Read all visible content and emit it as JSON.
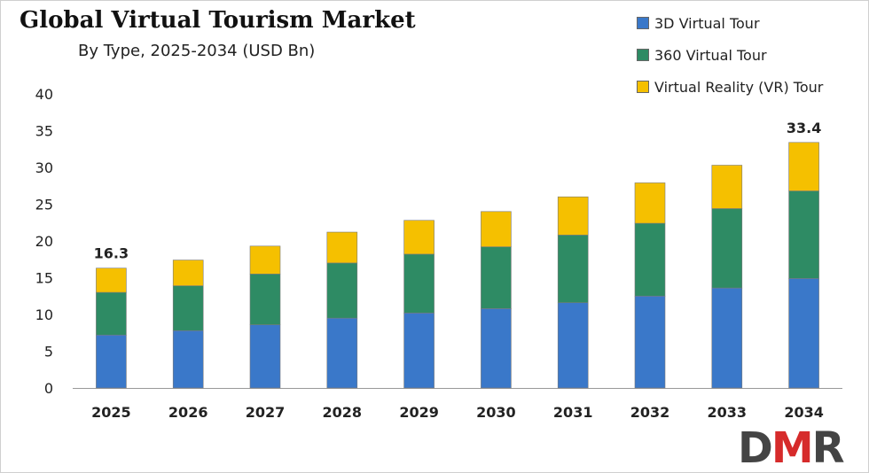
{
  "chart_data": {
    "type": "bar",
    "stacked": true,
    "title": "Global Virtual Tourism Market",
    "subtitle": "By Type, 2025-2034 (USD Bn)",
    "categories": [
      "2025",
      "2026",
      "2027",
      "2028",
      "2029",
      "2030",
      "2031",
      "2032",
      "2033",
      "2034"
    ],
    "series": [
      {
        "name": "3D Virtual Tour",
        "color": "#3a78c9",
        "values": [
          7.2,
          7.8,
          8.6,
          9.5,
          10.2,
          10.8,
          11.6,
          12.5,
          13.6,
          14.9
        ]
      },
      {
        "name": "360 Virtual Tour",
        "color": "#2e8b64",
        "values": [
          5.8,
          6.1,
          6.9,
          7.5,
          8.0,
          8.4,
          9.2,
          9.9,
          10.8,
          11.9
        ]
      },
      {
        "name": "Virtual Reality (VR) Tour",
        "color": "#f5c000",
        "values": [
          3.3,
          3.5,
          3.8,
          4.2,
          4.6,
          4.8,
          5.2,
          5.5,
          5.9,
          6.6
        ]
      }
    ],
    "totals_labeled": {
      "2025": "16.3",
      "2034": "33.4"
    },
    "yticks": [
      "0",
      "5",
      "10",
      "15",
      "20",
      "25",
      "30",
      "35",
      "40"
    ],
    "ylim": [
      0,
      40
    ],
    "grid": false,
    "legend_position": "top-right"
  },
  "logo": {
    "text_d": "D",
    "text_m": "M",
    "text_r": "R",
    "color_d": "#444444",
    "color_m": "#d62b2b",
    "color_r": "#444444"
  }
}
